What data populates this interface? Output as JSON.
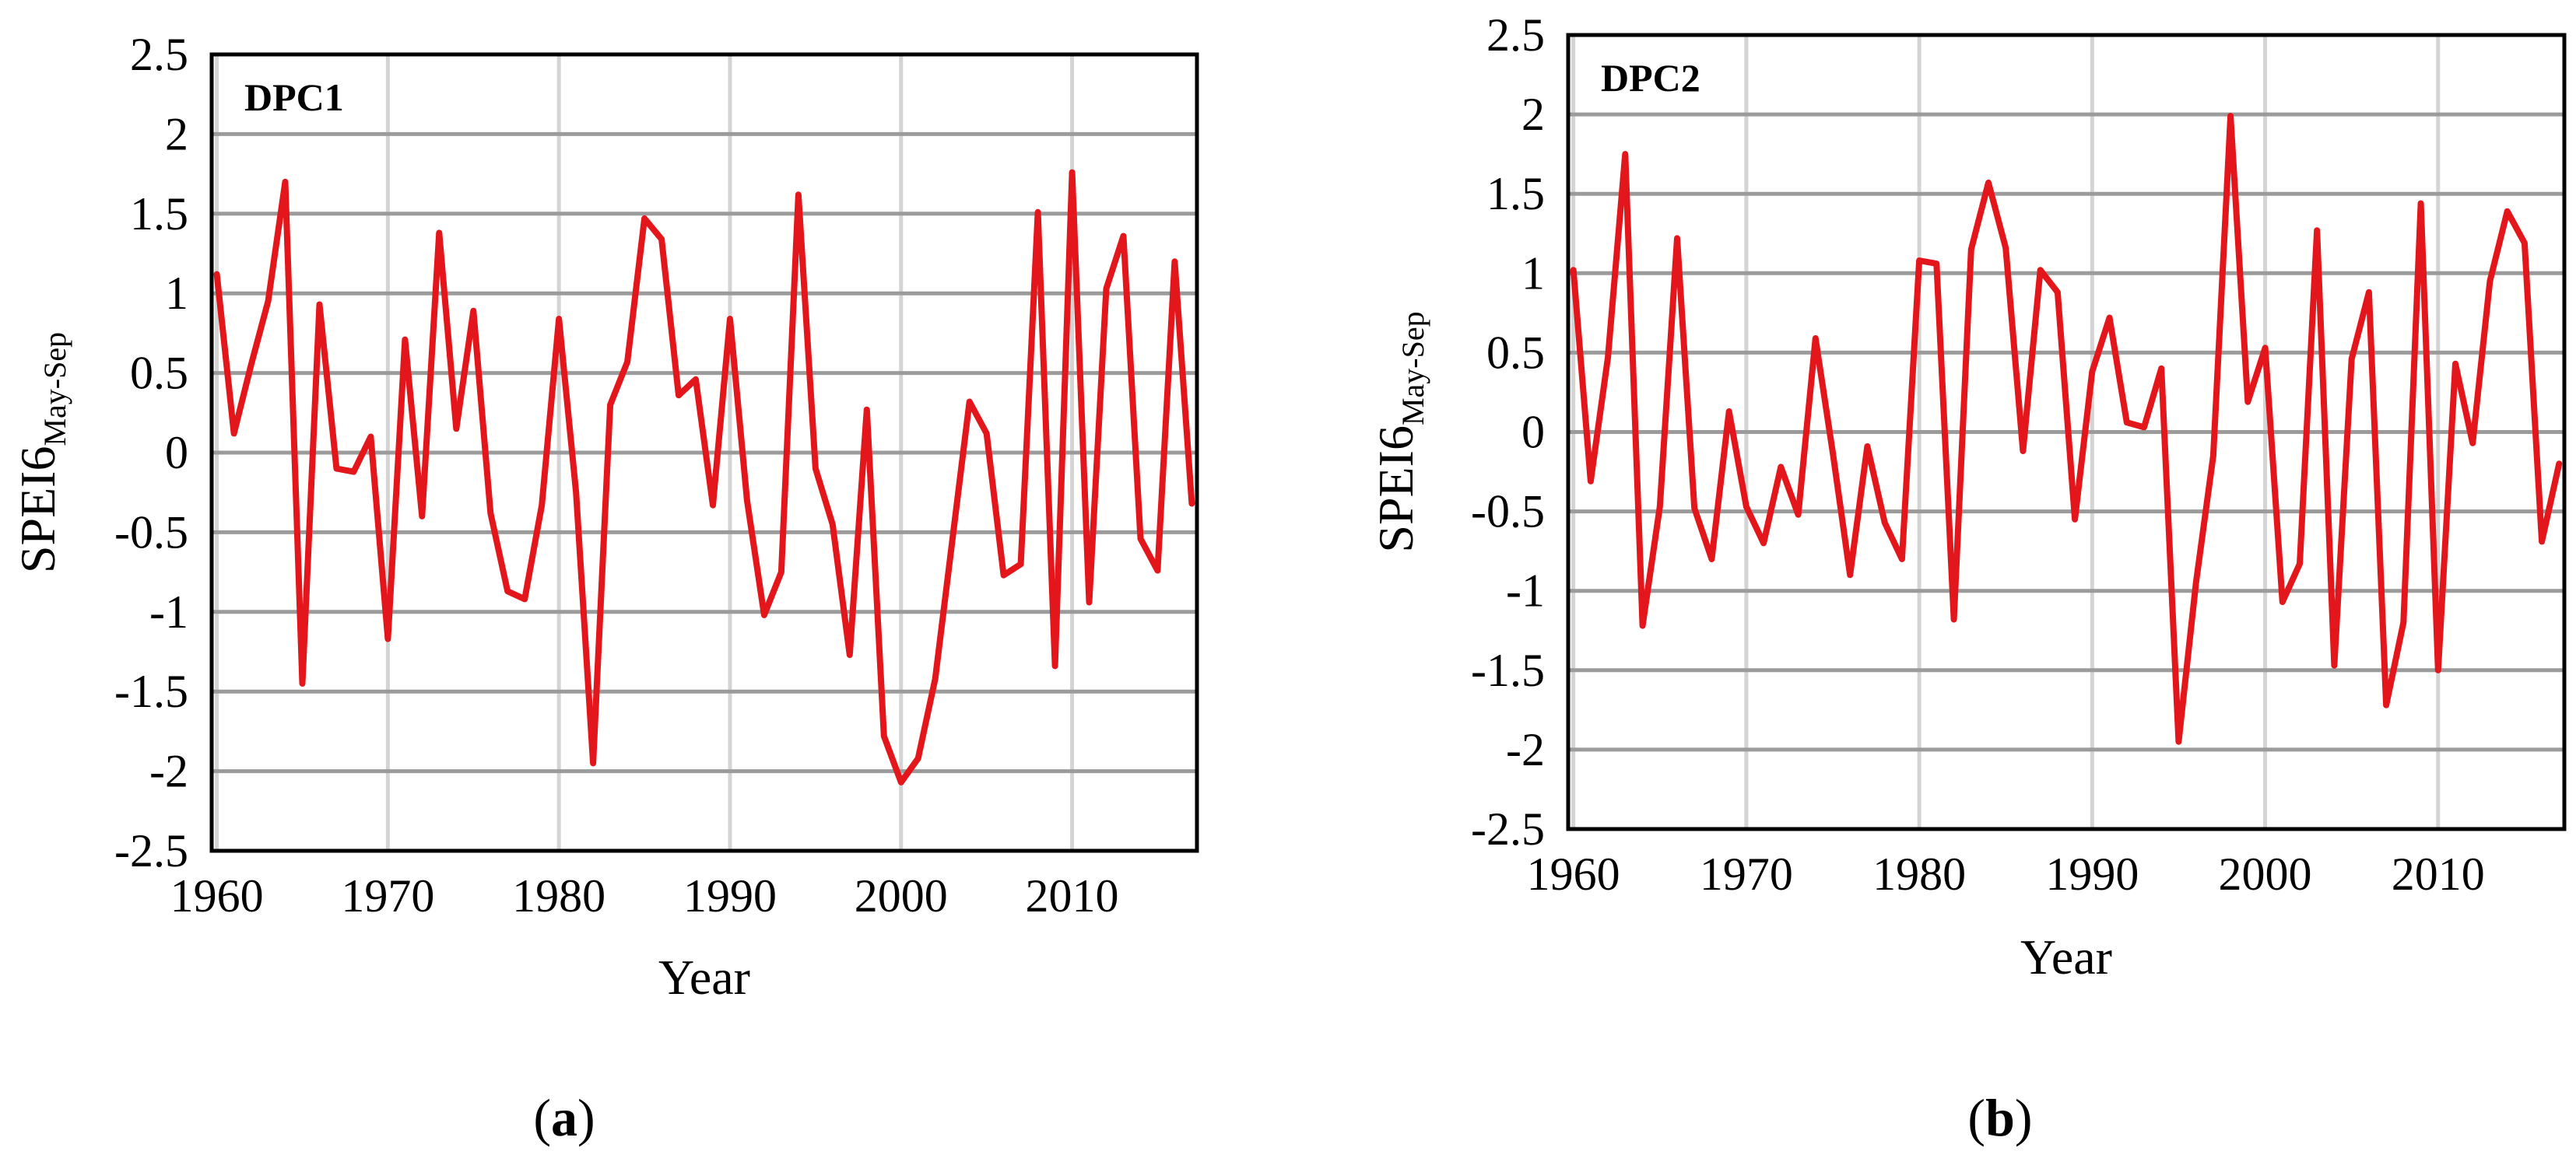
{
  "figure": {
    "panels": [
      {
        "caption_open": "(",
        "caption_letter": "a",
        "caption_close": ")"
      },
      {
        "caption_open": "(",
        "caption_letter": "b",
        "caption_close": ")"
      }
    ]
  },
  "colors": {
    "series": "#e3161b",
    "grid_h": "#9b9b9b",
    "grid_v": "#d4d4d4",
    "frame": "#000000"
  },
  "chart_data": [
    {
      "type": "line",
      "title": "DPC1",
      "xlabel": "Year",
      "ylabel_main": "SPEI6",
      "ylabel_sub": "May-Sep",
      "xlim": [
        1959.7,
        2017.3
      ],
      "ylim": [
        -2.5,
        2.5
      ],
      "xticks": [
        1960,
        1970,
        1980,
        1990,
        2000,
        2010
      ],
      "yticks": [
        2.5,
        2,
        1.5,
        1,
        0.5,
        0,
        -0.5,
        -1,
        -1.5,
        -2,
        -2.5
      ],
      "ytick_labels": [
        "2.5",
        "2",
        "1.5",
        "1",
        "0.5",
        "0",
        "-0.5",
        "-1",
        "-1.5",
        "-2",
        "-2.5"
      ],
      "x": [
        1960,
        1961,
        1962,
        1963,
        1964,
        1965,
        1966,
        1967,
        1968,
        1969,
        1970,
        1971,
        1972,
        1973,
        1974,
        1975,
        1976,
        1977,
        1978,
        1979,
        1980,
        1981,
        1982,
        1983,
        1984,
        1985,
        1986,
        1987,
        1988,
        1989,
        1990,
        1991,
        1992,
        1993,
        1994,
        1995,
        1996,
        1997,
        1998,
        1999,
        2000,
        2001,
        2002,
        2003,
        2004,
        2005,
        2006,
        2007,
        2008,
        2009,
        2010,
        2011,
        2012,
        2013,
        2014,
        2015,
        2016,
        2017
      ],
      "series": [
        {
          "name": "DPC1",
          "values": [
            1.12,
            0.12,
            0.55,
            0.95,
            1.7,
            -1.45,
            0.93,
            -0.1,
            -0.12,
            0.1,
            -1.17,
            0.71,
            -0.4,
            1.38,
            0.15,
            0.89,
            -0.38,
            -0.87,
            -0.92,
            -0.33,
            0.84,
            -0.25,
            -1.95,
            0.3,
            0.57,
            1.47,
            1.34,
            0.36,
            0.46,
            -0.33,
            0.84,
            -0.3,
            -1.02,
            -0.75,
            1.62,
            -0.1,
            -0.45,
            -1.27,
            0.27,
            -1.78,
            -2.07,
            -1.92,
            -1.42,
            -0.55,
            0.32,
            0.12,
            -0.77,
            -0.7,
            1.51,
            -1.34,
            1.76,
            -0.94,
            1.03,
            1.36,
            -0.54,
            -0.74,
            1.2,
            -0.32
          ]
        }
      ]
    },
    {
      "type": "line",
      "title": "DPC2",
      "xlabel": "Year",
      "ylabel_main": "SPEI6",
      "ylabel_sub": "May-Sep",
      "xlim": [
        1959.7,
        2017.3
      ],
      "ylim": [
        -2.5,
        2.5
      ],
      "xticks": [
        1960,
        1970,
        1980,
        1990,
        2000,
        2010
      ],
      "yticks": [
        2.5,
        2,
        1.5,
        1,
        0.5,
        0,
        -0.5,
        -1,
        -1.5,
        -2,
        -2.5
      ],
      "ytick_labels": [
        "2.5",
        "2",
        "1.5",
        "1",
        "0.5",
        "0",
        "-0.5",
        "-1",
        "-1.5",
        "-2",
        "-2.5"
      ],
      "x": [
        1960,
        1961,
        1962,
        1963,
        1964,
        1965,
        1966,
        1967,
        1968,
        1969,
        1970,
        1971,
        1972,
        1973,
        1974,
        1975,
        1976,
        1977,
        1978,
        1979,
        1980,
        1981,
        1982,
        1983,
        1984,
        1985,
        1986,
        1987,
        1988,
        1989,
        1990,
        1991,
        1992,
        1993,
        1994,
        1995,
        1996,
        1997,
        1998,
        1999,
        2000,
        2001,
        2002,
        2003,
        2004,
        2005,
        2006,
        2007,
        2008,
        2009,
        2010,
        2011,
        2012,
        2013,
        2014,
        2015,
        2016,
        2017
      ],
      "series": [
        {
          "name": "DPC2",
          "values": [
            1.02,
            -0.31,
            0.47,
            1.75,
            -1.22,
            -0.47,
            1.22,
            -0.48,
            -0.8,
            0.13,
            -0.47,
            -0.7,
            -0.22,
            -0.52,
            0.59,
            -0.13,
            -0.9,
            -0.09,
            -0.57,
            -0.8,
            1.08,
            1.06,
            -1.18,
            1.15,
            1.57,
            1.16,
            -0.12,
            1.02,
            0.88,
            -0.55,
            0.38,
            0.72,
            0.06,
            0.03,
            0.4,
            -1.95,
            -0.95,
            -0.15,
            1.99,
            0.19,
            0.53,
            -1.07,
            -0.83,
            1.27,
            -1.47,
            0.46,
            0.88,
            -1.72,
            -1.2,
            1.44,
            -1.5,
            0.43,
            -0.07,
            0.95,
            1.39,
            1.19,
            -0.69,
            -0.2
          ]
        }
      ]
    }
  ]
}
